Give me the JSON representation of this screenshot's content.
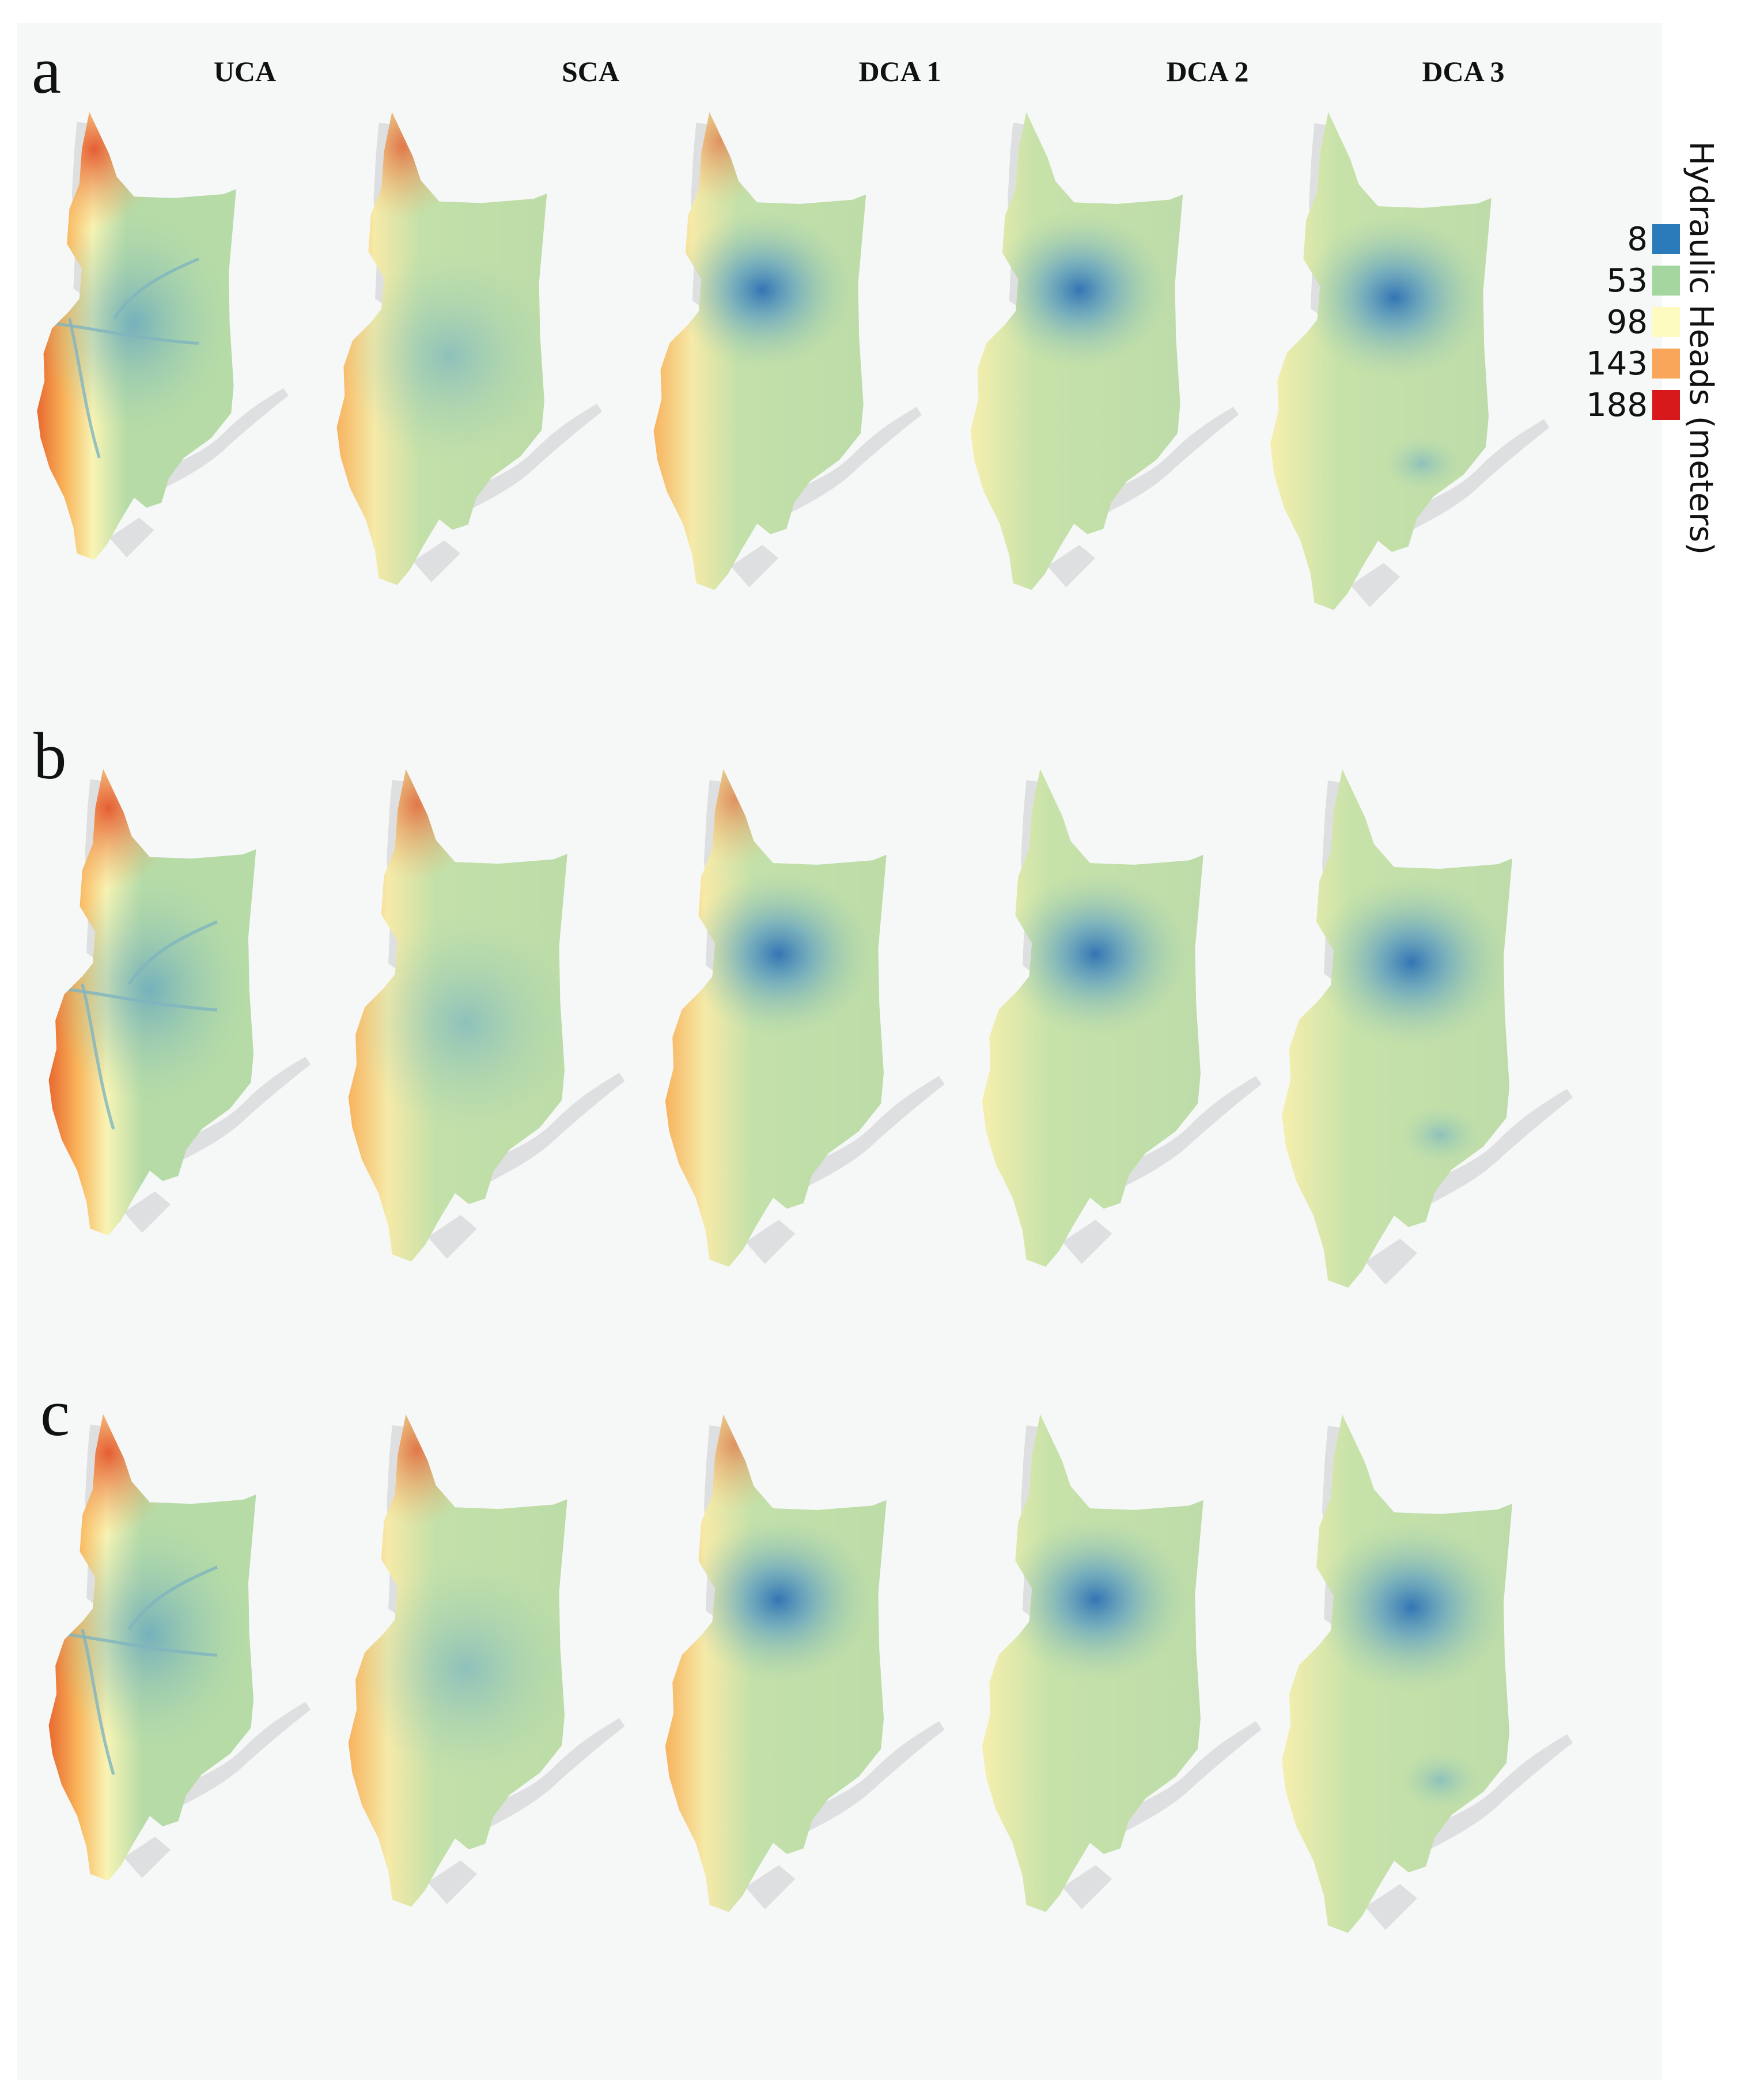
{
  "columns": [
    {
      "label": "UCA"
    },
    {
      "label": "SCA"
    },
    {
      "label": "DCA 1"
    },
    {
      "label": "DCA 2"
    },
    {
      "label": "DCA 3"
    }
  ],
  "rows": [
    {
      "label": "a"
    },
    {
      "label": "b"
    },
    {
      "label": "c"
    }
  ],
  "legend": {
    "title": "Hydraulic Heads (meters)",
    "entries": [
      {
        "value": "8",
        "color": "#2b7bba"
      },
      {
        "value": "53",
        "color": "#a5d6a0"
      },
      {
        "value": "98",
        "color": "#fdfbc0"
      },
      {
        "value": "143",
        "color": "#f9a65a"
      },
      {
        "value": "188",
        "color": "#d7191c"
      }
    ]
  },
  "colors": {
    "background": "#f6f8f8",
    "basemap_gray": "#dedfe0",
    "body_green": "#b9dba3",
    "low_blue": "#2b7bba",
    "high_red": "#d7191c"
  }
}
